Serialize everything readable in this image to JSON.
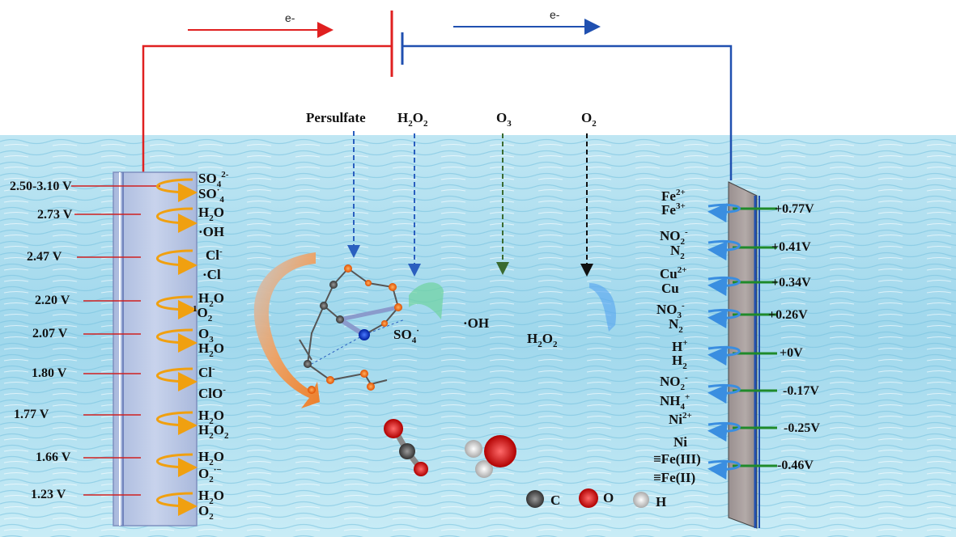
{
  "circuit": {
    "left_electron_label": "e-",
    "right_electron_label": "e-",
    "left_wire_color": "#e02020",
    "right_wire_color": "#2050b0"
  },
  "oxidants": {
    "persulfate": "Persulfate",
    "h2o2": "H",
    "o3": "O",
    "o2": "O"
  },
  "anode": {
    "potentials": [
      "2.50-3.10 V",
      "2.73 V",
      "2.47 V",
      "2.20 V",
      "2.07 V",
      "1.80 V",
      "1.77 V",
      "1.66 V",
      "1.23 V"
    ],
    "species_top": [
      "SO",
      "H",
      "Cl",
      "H",
      "O",
      "Cl",
      "H",
      "H",
      "H"
    ],
    "species_bottom": [
      "SO",
      "·OH",
      "·Cl",
      "O",
      "H",
      "ClO",
      "H",
      "O",
      "O"
    ]
  },
  "cathode": {
    "potentials": [
      "+0.77V",
      "+0.41V",
      "+0.34V",
      "+0.26V",
      "+0V",
      "-0.17V",
      "-0.25V",
      "-0.46V"
    ],
    "species_top": [
      "Fe",
      "NO",
      "Cu",
      "NO",
      "H",
      "NO",
      "Ni",
      "≡Fe(III)"
    ],
    "species_bottom": [
      "Fe",
      "N",
      "Cu",
      "N",
      "H",
      "NH",
      "Ni",
      "≡Fe(II)"
    ]
  },
  "center": {
    "so4_radical": "SO",
    "oh_radical": "·OH",
    "h2o2": "H",
    "o_subscript_2": "2",
    "o_subscript_3": "3"
  },
  "legend": {
    "c_label": "C",
    "o_label": "O",
    "h_label": "H",
    "c_color": "#555555",
    "o_color": "#d01818",
    "h_color": "#dddddd"
  }
}
